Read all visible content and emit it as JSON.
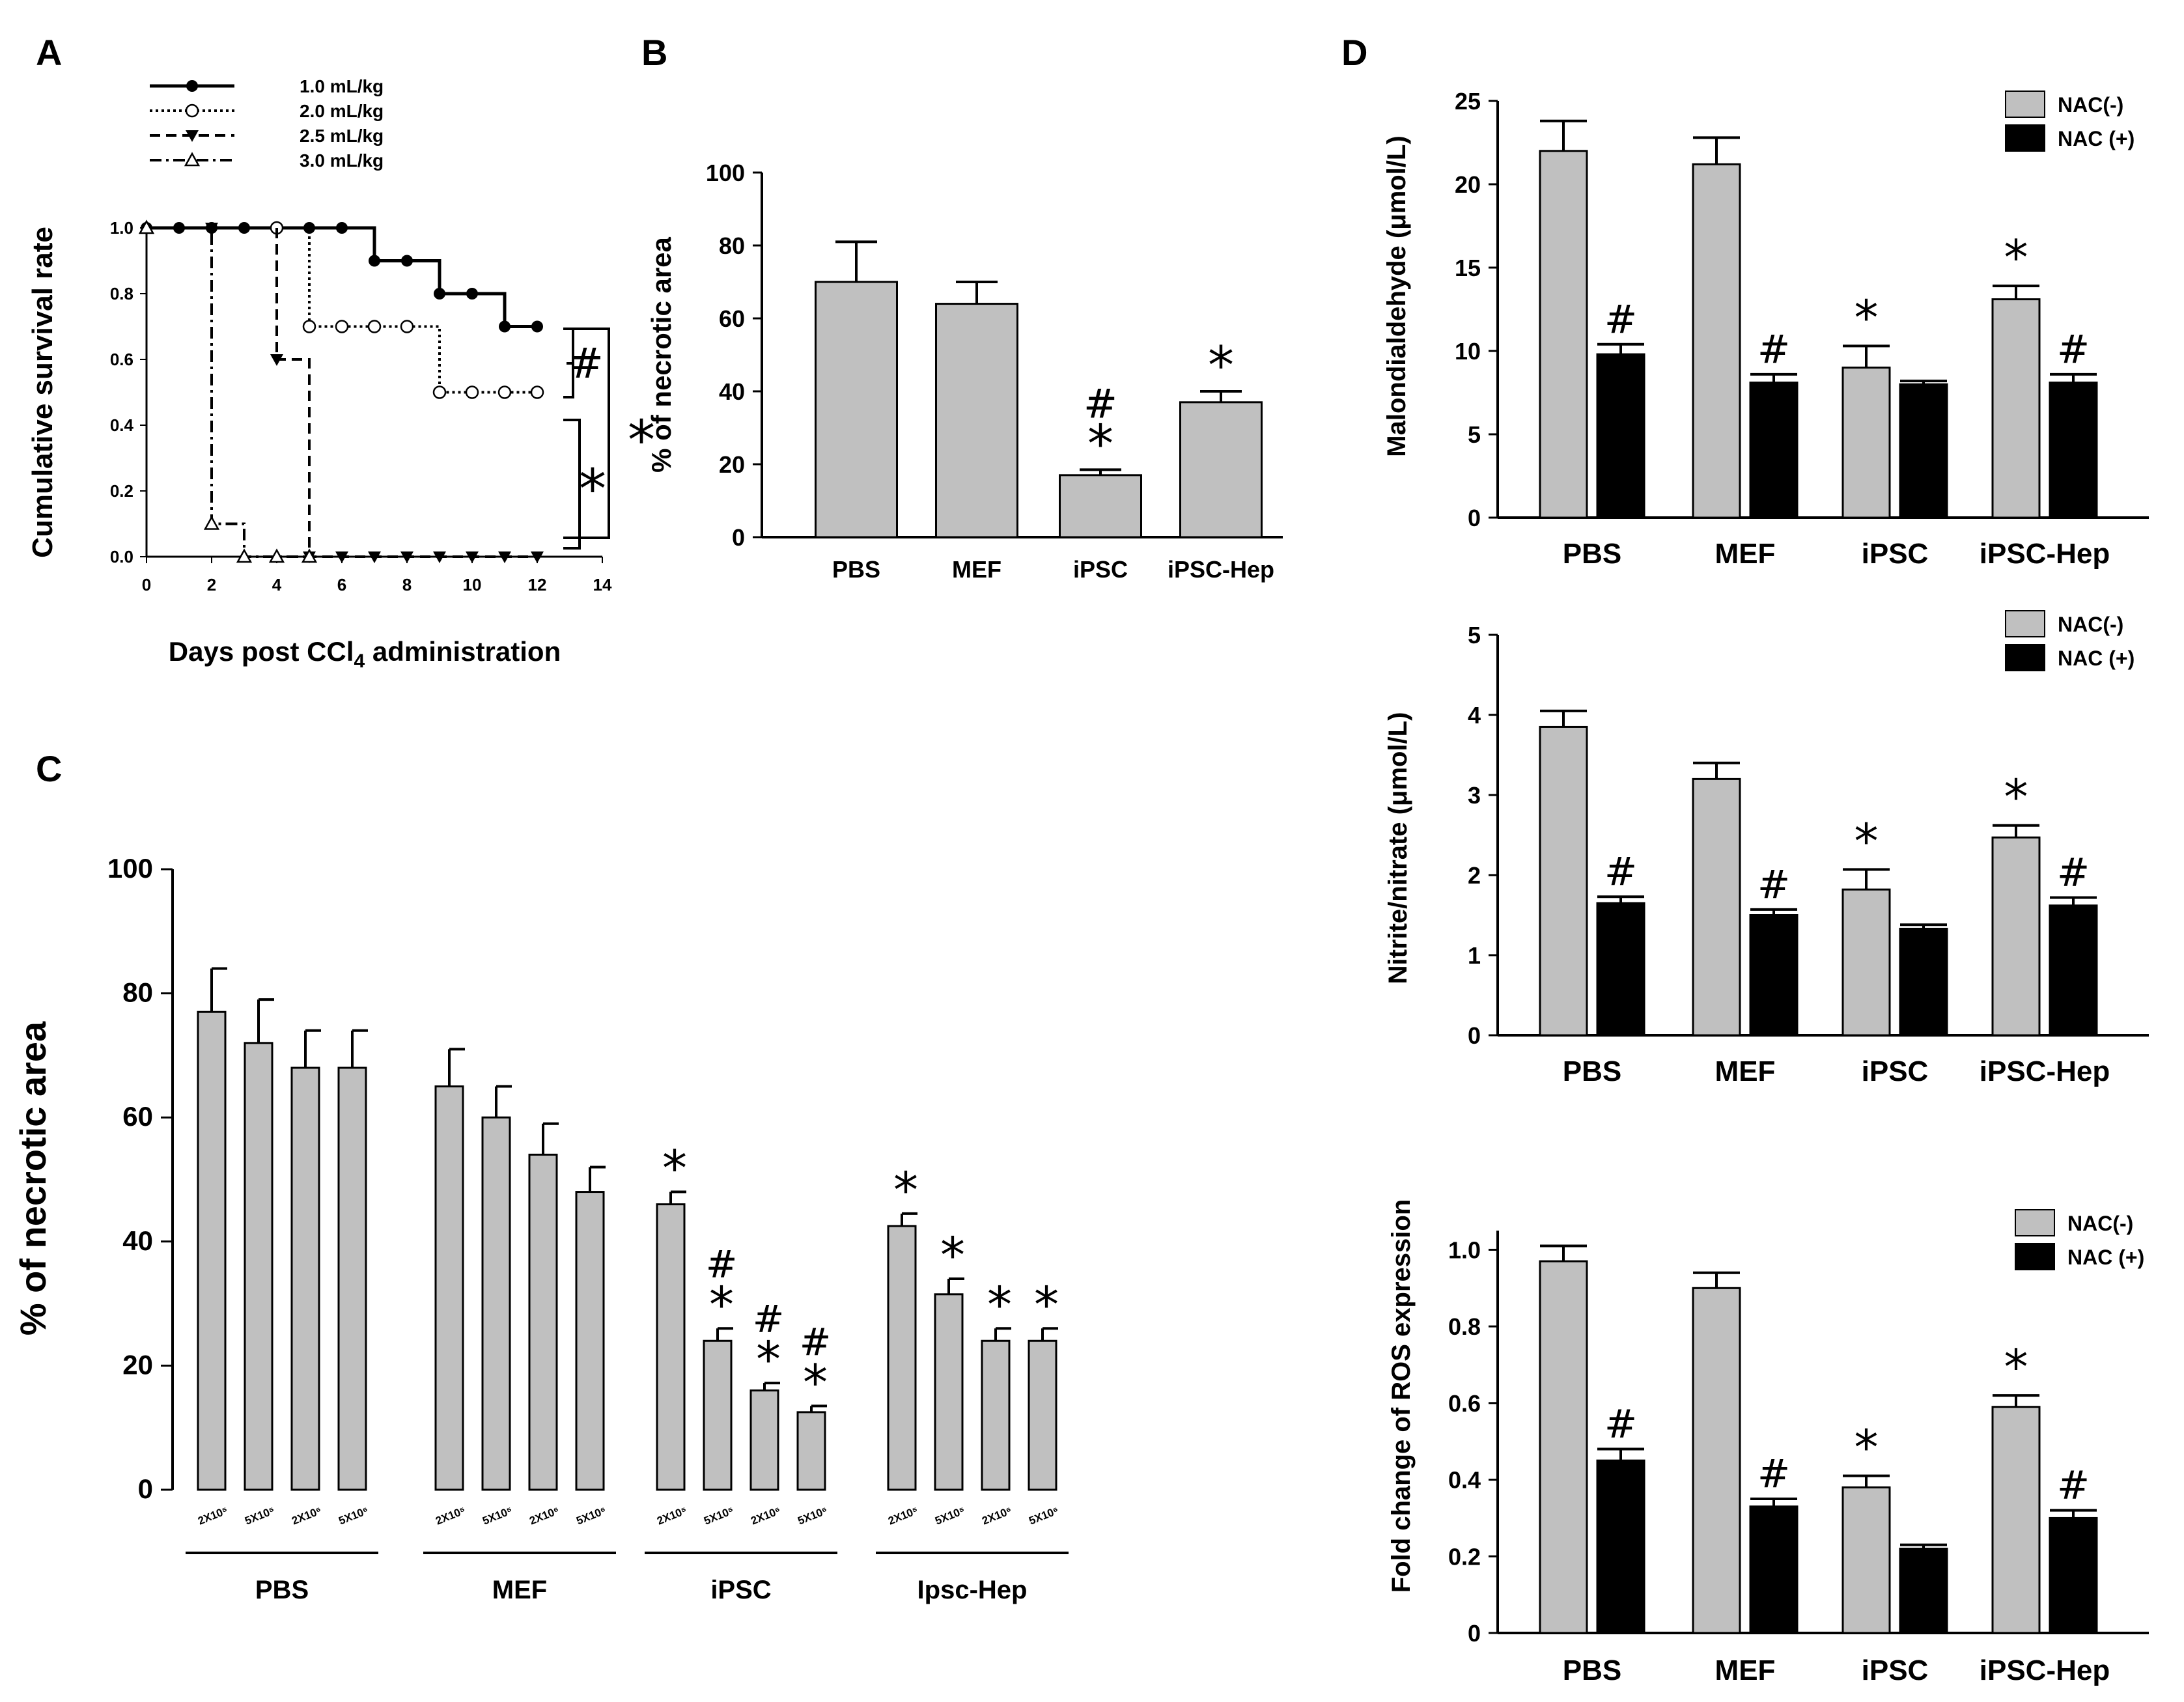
{
  "chart_data": [
    {
      "panel": "A",
      "type": "line",
      "step": true,
      "ylabel": "Cumulative survival rate",
      "xlabel_pre": "Days post CCl",
      "xlabel_sub": "4",
      "xlabel_post": " administration",
      "xlim": [
        0,
        14
      ],
      "ylim": [
        0,
        1.0
      ],
      "xticks": [
        "0",
        "2",
        "4",
        "6",
        "8",
        "10",
        "12",
        "14"
      ],
      "yticks": [
        "0.0",
        "0.2",
        "0.4",
        "0.6",
        "0.8",
        "1.0"
      ],
      "series": [
        {
          "name": "1.0 mL/kg",
          "style": "solid",
          "marker": "filled-circle",
          "x": [
            0,
            1,
            2,
            3,
            4,
            5,
            6,
            7,
            8,
            9,
            10,
            11,
            12
          ],
          "y": [
            1.0,
            1.0,
            1.0,
            1.0,
            1.0,
            1.0,
            1.0,
            0.9,
            0.9,
            0.8,
            0.8,
            0.7,
            0.7
          ]
        },
        {
          "name": "2.0 mL/kg",
          "style": "dotted",
          "marker": "open-circle",
          "x": [
            4,
            5,
            6,
            7,
            8,
            9,
            10,
            11,
            12
          ],
          "y": [
            1.0,
            0.7,
            0.7,
            0.7,
            0.7,
            0.5,
            0.5,
            0.5,
            0.5
          ]
        },
        {
          "name": "2.5 mL/kg",
          "style": "dashed",
          "marker": "down-triangle",
          "x": [
            2,
            4,
            5,
            6,
            7,
            8,
            9,
            10,
            11,
            12
          ],
          "y": [
            1.0,
            0.6,
            0.0,
            0.0,
            0.0,
            0.0,
            0.0,
            0.0,
            0.0,
            0.0
          ]
        },
        {
          "name": "3.0 mL/kg",
          "style": "dash-dot",
          "marker": "open-triangle",
          "x": [
            0,
            2,
            3,
            4,
            5
          ],
          "y": [
            1.0,
            0.1,
            0.0,
            0.0,
            0.0
          ]
        }
      ],
      "annotations": [
        "#",
        "*",
        "*"
      ]
    },
    {
      "panel": "B",
      "type": "bar",
      "ylabel": "% of necrotic area",
      "ylim": [
        0,
        100
      ],
      "yticks": [
        "0",
        "20",
        "40",
        "60",
        "80",
        "100"
      ],
      "categories": [
        "PBS",
        "MEF",
        "iPSC",
        "iPSC-Hep"
      ],
      "values": [
        70,
        64,
        17,
        37
      ],
      "errors": [
        11,
        6,
        1.5,
        3
      ],
      "marks": [
        [],
        [],
        [
          "#",
          "*"
        ],
        [
          "*"
        ]
      ]
    },
    {
      "panel": "C",
      "type": "bar",
      "ylabel": "% of necrotic area",
      "ylim": [
        0,
        100
      ],
      "yticks": [
        "0",
        "20",
        "40",
        "60",
        "80",
        "100"
      ],
      "groups": [
        "PBS",
        "MEF",
        "iPSC",
        "Ipsc-Hep"
      ],
      "doses": [
        "2X10⁵",
        "5X10⁵",
        "2X10⁶",
        "5X10⁶"
      ],
      "values": [
        [
          77,
          72,
          68,
          68
        ],
        [
          65,
          60,
          54,
          48
        ],
        [
          46,
          24,
          16,
          12.5
        ],
        [
          42.5,
          31.5,
          24,
          24
        ]
      ],
      "errors": [
        [
          7,
          7,
          6,
          6
        ],
        [
          6,
          5,
          5,
          4
        ],
        [
          2,
          2,
          1.2,
          1
        ],
        [
          2,
          2.5,
          2,
          2
        ]
      ],
      "marks": [
        [
          [],
          [],
          [],
          []
        ],
        [
          [],
          [],
          [],
          []
        ],
        [
          [
            "*"
          ],
          [
            "#",
            "*"
          ],
          [
            "#",
            "*"
          ],
          [
            "#",
            "*"
          ]
        ],
        [
          [
            "*"
          ],
          [
            "*"
          ],
          [
            "*"
          ],
          [
            "*"
          ]
        ]
      ]
    },
    {
      "panel": "D",
      "type": "bar",
      "ylabel": "Malondialdehyde (μmol/L)",
      "ylim": [
        0,
        25
      ],
      "yticks": [
        "0",
        "5",
        "10",
        "15",
        "20",
        "25"
      ],
      "categories": [
        "PBS",
        "MEF",
        "iPSC",
        "iPSC-Hep"
      ],
      "series": [
        {
          "name": "NAC(-)",
          "color": "#c0c0c0",
          "values": [
            22,
            21.2,
            9,
            13.1
          ],
          "errors": [
            1.8,
            1.6,
            1.3,
            0.8
          ]
        },
        {
          "name": "NAC (+)",
          "color": "#000000",
          "values": [
            9.8,
            8.1,
            8.0,
            8.1
          ],
          "errors": [
            0.6,
            0.5,
            0.2,
            0.5
          ]
        }
      ],
      "marks": [
        [
          [],
          [
            "#"
          ]
        ],
        [
          [],
          [
            "#"
          ]
        ],
        [
          [
            "*"
          ],
          []
        ],
        [
          [
            "*"
          ],
          [
            "#"
          ]
        ]
      ]
    },
    {
      "panel": "D2",
      "type": "bar",
      "ylabel": "Nitrite/nitrate (μmol/L)",
      "ylim": [
        0,
        5
      ],
      "yticks": [
        "0",
        "1",
        "2",
        "3",
        "4",
        "5"
      ],
      "categories": [
        "PBS",
        "MEF",
        "iPSC",
        "iPSC-Hep"
      ],
      "series": [
        {
          "name": "NAC(-)",
          "color": "#c0c0c0",
          "values": [
            3.85,
            3.2,
            1.82,
            2.47
          ],
          "errors": [
            0.2,
            0.2,
            0.25,
            0.15
          ]
        },
        {
          "name": "NAC (+)",
          "color": "#000000",
          "values": [
            1.65,
            1.5,
            1.33,
            1.62
          ],
          "errors": [
            0.08,
            0.07,
            0.05,
            0.1
          ]
        }
      ],
      "marks": [
        [
          [],
          [
            "#"
          ]
        ],
        [
          [],
          [
            "#"
          ]
        ],
        [
          [
            "*"
          ],
          []
        ],
        [
          [
            "*"
          ],
          [
            "#"
          ]
        ]
      ]
    },
    {
      "panel": "D3",
      "type": "bar",
      "ylabel": "Fold change of ROS expression",
      "ylim": [
        0,
        1.05
      ],
      "yticks": [
        "0",
        "0.2",
        "0.4",
        "0.6",
        "0.8",
        "1.0"
      ],
      "categories": [
        "PBS",
        "MEF",
        "iPSC",
        "iPSC-Hep"
      ],
      "series": [
        {
          "name": "NAC(-)",
          "color": "#c0c0c0",
          "values": [
            0.97,
            0.9,
            0.38,
            0.59
          ],
          "errors": [
            0.04,
            0.04,
            0.03,
            0.03
          ]
        },
        {
          "name": "NAC (+)",
          "color": "#000000",
          "values": [
            0.45,
            0.33,
            0.22,
            0.3
          ],
          "errors": [
            0.03,
            0.02,
            0.01,
            0.02
          ]
        }
      ],
      "marks": [
        [
          [],
          [
            "#"
          ]
        ],
        [
          [],
          [
            "#"
          ]
        ],
        [
          [
            "*"
          ],
          []
        ],
        [
          [
            "*"
          ],
          [
            "#"
          ]
        ]
      ]
    }
  ],
  "panel_letters": [
    "A",
    "B",
    "C",
    "D"
  ]
}
